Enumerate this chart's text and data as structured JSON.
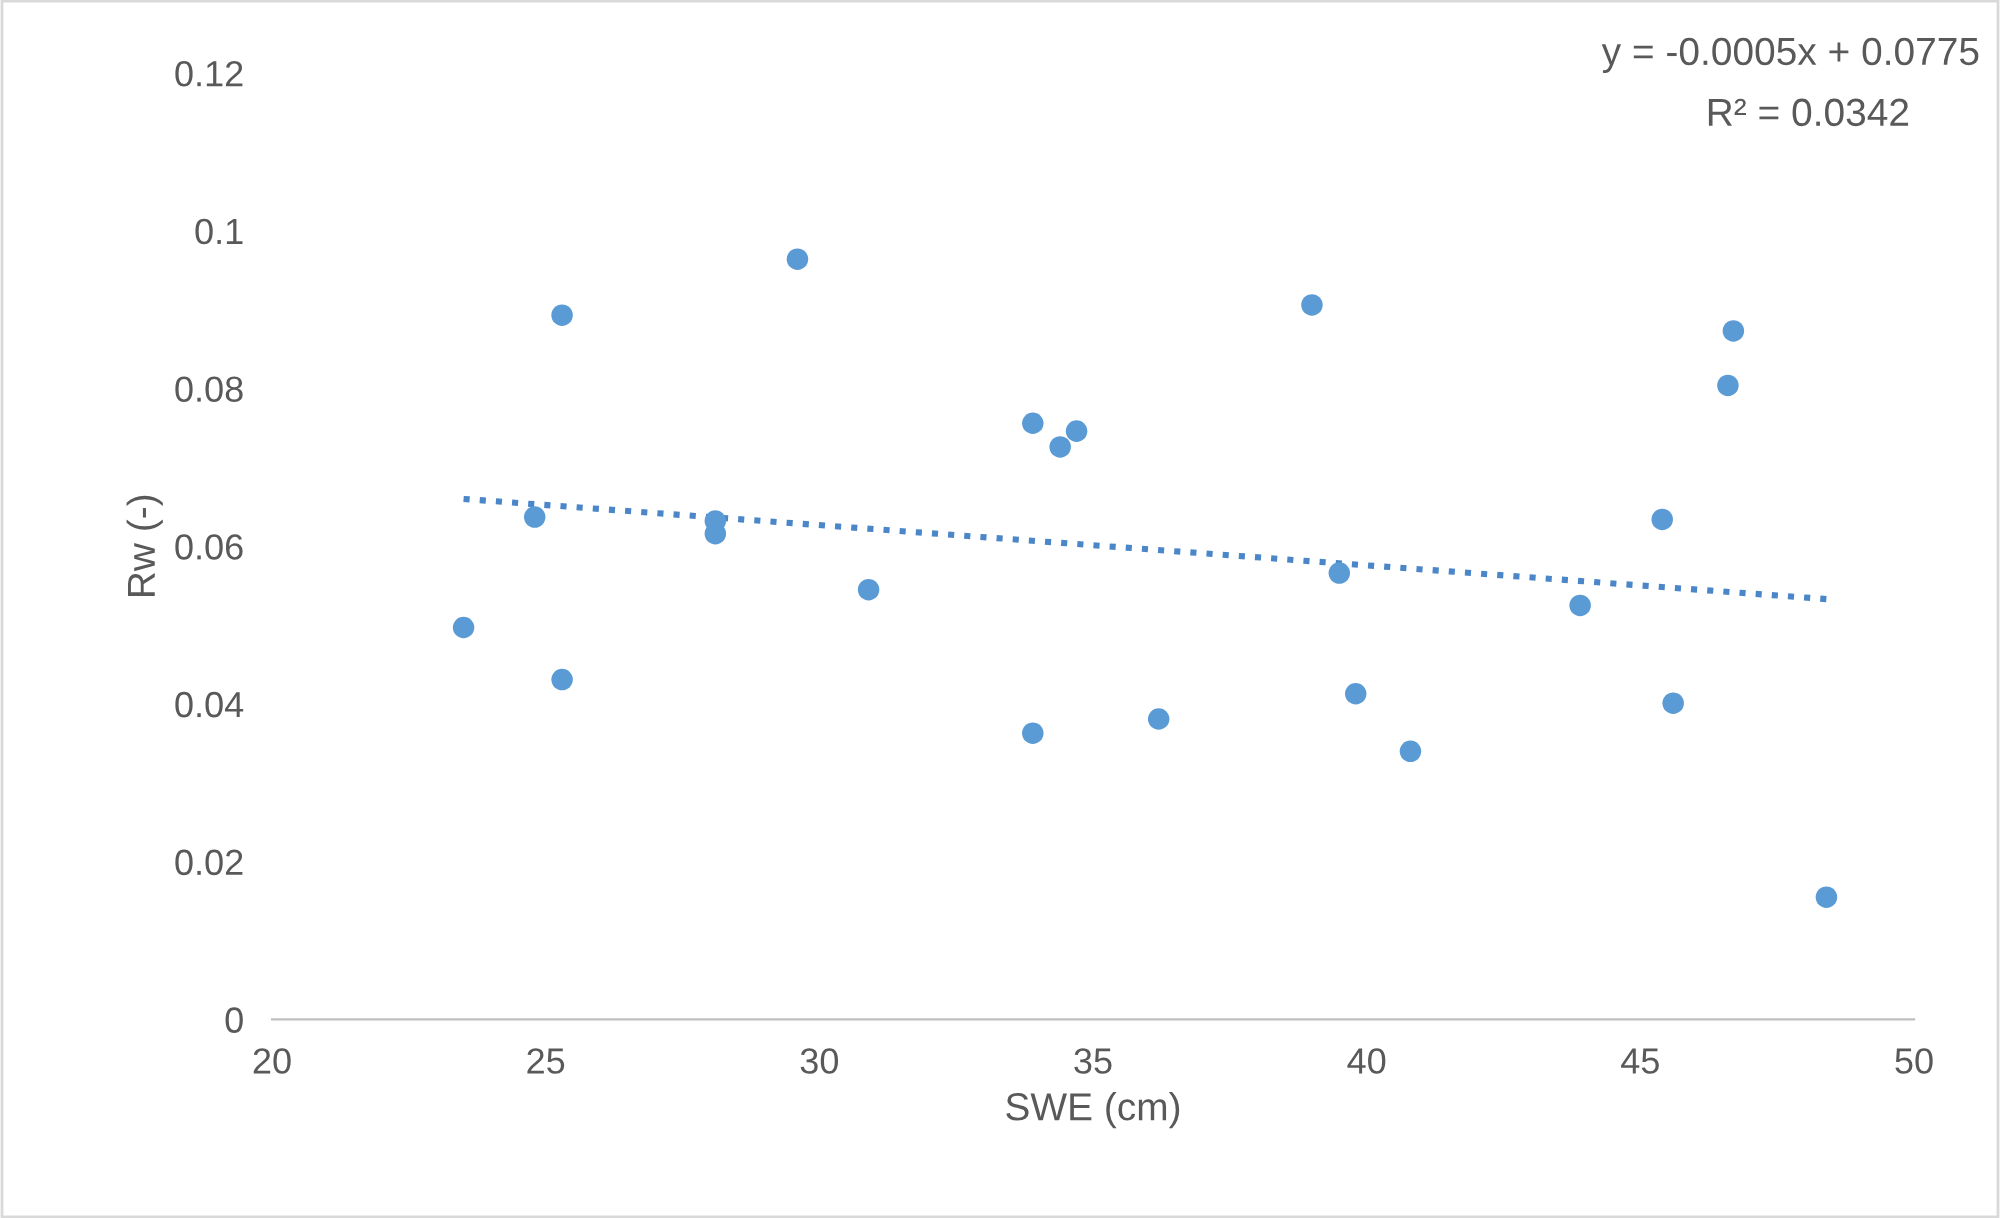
{
  "chart_data": {
    "type": "scatter",
    "xlabel": "SWE (cm)",
    "ylabel": "Rw (-)",
    "xlim": [
      20,
      50
    ],
    "xticks": [
      20,
      25,
      30,
      35,
      40,
      45,
      50
    ],
    "ylim": [
      0,
      0.12
    ],
    "yticks": [
      {
        "value": 0,
        "label": "0"
      },
      {
        "value": 0.02,
        "label": "0.02"
      },
      {
        "value": 0.04,
        "label": "0.04"
      },
      {
        "value": 0.06,
        "label": "0.06"
      },
      {
        "value": 0.08,
        "label": "0.08"
      },
      {
        "value": 0.1,
        "label": "0.1"
      },
      {
        "value": 0.12,
        "label": "0.12"
      }
    ],
    "grid": false,
    "legend": false,
    "marker": "circle",
    "annotations": [
      "y = -0.0005x + 0.0775",
      "R² = 0.0342"
    ],
    "series": [
      {
        "color": "#5b9bd5",
        "x": [
          23.5,
          24.8,
          25.3,
          25.3,
          28.1,
          28.1,
          29.6,
          30.9,
          33.9,
          34.4,
          34.7,
          33.9,
          36.2,
          39.0,
          39.5,
          39.8,
          40.8,
          43.9,
          45.4,
          45.6,
          46.6,
          46.7,
          48.4
        ],
        "values": [
          0.0497,
          0.0637,
          0.0893,
          0.0431,
          0.0632,
          0.0616,
          0.0964,
          0.0545,
          0.0756,
          0.0726,
          0.0746,
          0.0363,
          0.0381,
          0.0906,
          0.0566,
          0.0413,
          0.034,
          0.0525,
          0.0634,
          0.0401,
          0.0804,
          0.0873,
          0.0155
        ]
      },
      {
        "type": "line",
        "color": "#4a86c8",
        "line_style": "dotted",
        "marker": "none",
        "x": [
          23.5,
          48.4
        ],
        "values": [
          0.066,
          0.0533
        ]
      }
    ]
  }
}
